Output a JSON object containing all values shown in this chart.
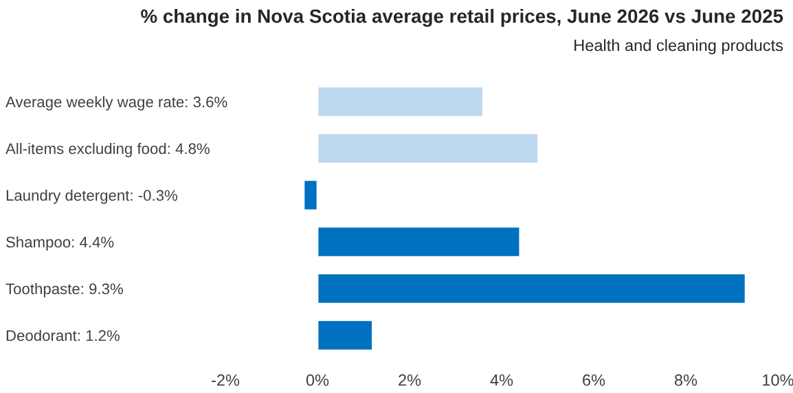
{
  "chart_data": {
    "type": "bar",
    "orientation": "horizontal",
    "title": "% change in Nova Scotia average retail prices, June 2026 vs June 2025",
    "subtitle": "Health and cleaning products",
    "categories": [
      "Average weekly wage rate: 3.6%",
      "All-items excluding food: 4.8%",
      "Laundry detergent: -0.3%",
      "Shampoo: 4.4%",
      "Toothpaste: 9.3%",
      "Deodorant: 1.2%"
    ],
    "values": [
      3.6,
      4.8,
      -0.3,
      4.4,
      9.3,
      1.2
    ],
    "colors": [
      "#bdd7ee",
      "#bdd7ee",
      "#0070c0",
      "#0070c0",
      "#0070c0",
      "#0070c0"
    ],
    "xlim": [
      -2,
      10
    ],
    "xticks": [
      {
        "value": -2,
        "label": "-2%"
      },
      {
        "value": 0,
        "label": "0%"
      },
      {
        "value": 2,
        "label": "2%"
      },
      {
        "value": 4,
        "label": "4%"
      },
      {
        "value": 6,
        "label": "6%"
      },
      {
        "value": 8,
        "label": "8%"
      },
      {
        "value": 10,
        "label": "10%"
      }
    ],
    "grid": false,
    "legend": false
  }
}
